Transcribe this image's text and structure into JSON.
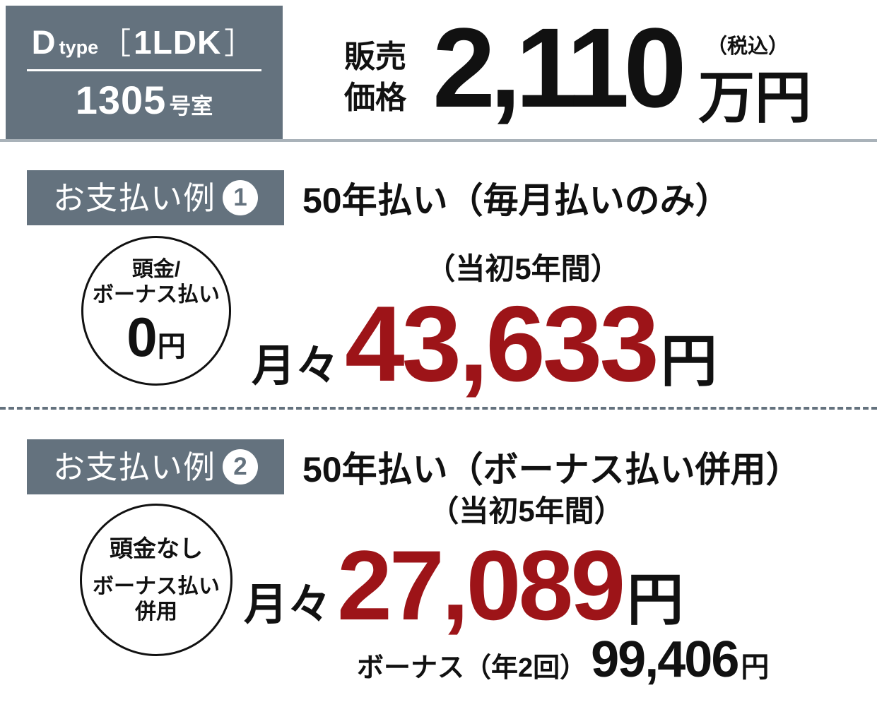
{
  "colors": {
    "slate": "#64727E",
    "accent_red": "#9D1418",
    "text_black": "#111111",
    "header_underline": "#A9B2B9"
  },
  "header": {
    "type": {
      "letter": "D",
      "word": "type",
      "bracket_open": "［",
      "plan": "1LDK",
      "bracket_close": "］"
    },
    "room": {
      "number": "1305",
      "suffix": "号室"
    },
    "price": {
      "label_line1": "販売",
      "label_line2": "価格",
      "amount": "2,110",
      "unit": "万円",
      "tax_note": "（税込）"
    }
  },
  "example1": {
    "badge_label": "お支払い例",
    "badge_number": "1",
    "title": "50年払い（毎月払いのみ）",
    "circle_line1": "頭金/",
    "circle_line2": "ボーナス払い",
    "circle_amount": "0",
    "circle_unit": "円",
    "period_note": "（当初5年間）",
    "monthly_prefix": "月々",
    "monthly_amount": "43,633",
    "monthly_unit": "円"
  },
  "example2": {
    "badge_label": "お支払い例",
    "badge_number": "2",
    "title": "50年払い（ボーナス払い併用）",
    "circle_line1": "頭金なし",
    "circle_line2": "ボーナス払い",
    "circle_line3": "併用",
    "period_note": "（当初5年間）",
    "monthly_prefix": "月々",
    "monthly_amount": "27,089",
    "monthly_unit": "円",
    "bonus_label": "ボーナス（年2回）",
    "bonus_amount": "99,406",
    "bonus_unit": "円"
  }
}
